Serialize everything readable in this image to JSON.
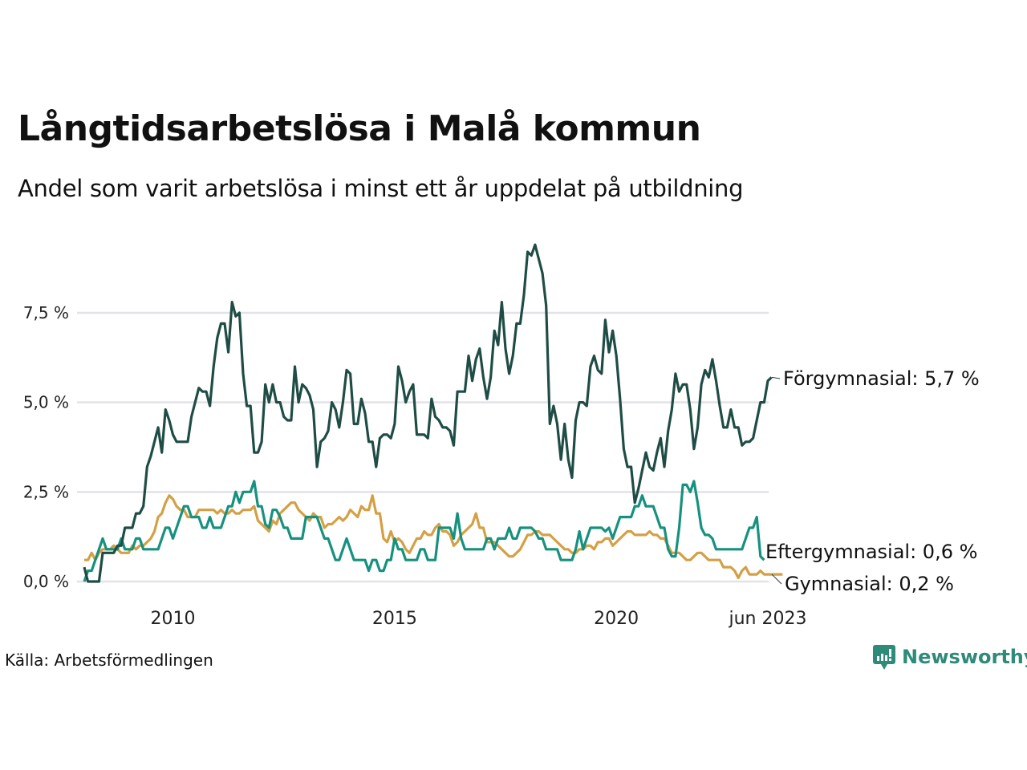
{
  "header": {
    "title": "Långtidsarbetslösa i Malå kommun",
    "subtitle": "Andel som varit arbetslösa i minst ett år uppdelat på utbildning"
  },
  "footer": {
    "source": "Källa: Arbetsförmedlingen",
    "brand": "Newsworthy",
    "brand_icon": "bar-chart-speech-bubble-icon",
    "brand_color": "#2e8b7a"
  },
  "chart_data": {
    "type": "line",
    "title": "Långtidsarbetslösa i Malå kommun",
    "subtitle": "Andel som varit arbetslösa i minst ett år uppdelat på utbildning",
    "xlabel": "",
    "ylabel": "",
    "x_start": "2008-01",
    "x_end": "2023-06",
    "x_frequency": "monthly",
    "x_ticks": [
      {
        "date": "2010-01",
        "label": "2010"
      },
      {
        "date": "2015-01",
        "label": "2015"
      },
      {
        "date": "2020-01",
        "label": "2020"
      },
      {
        "date": "2023-06",
        "label": "jun 2023"
      }
    ],
    "ylim": [
      0,
      9.5
    ],
    "y_ticks": [
      {
        "value": 0,
        "label": "0,0 %"
      },
      {
        "value": 2.5,
        "label": "2,5 %"
      },
      {
        "value": 5,
        "label": "5,0 %"
      },
      {
        "value": 7.5,
        "label": "7,5 %"
      }
    ],
    "grid": "horizontal",
    "legend": "direct-labels-right",
    "series": [
      {
        "name": "Förgymnasial",
        "end_label": "Förgymnasial: 5,7 %",
        "color": "#1f4d45",
        "values": [
          0.4,
          0,
          0,
          0,
          0,
          0.8,
          0.8,
          0.8,
          0.8,
          1.0,
          1.0,
          1.5,
          1.5,
          1.5,
          1.9,
          1.9,
          2.1,
          3.2,
          3.5,
          3.9,
          4.3,
          3.6,
          4.8,
          4.5,
          4.1,
          3.9,
          3.9,
          3.9,
          3.9,
          4.6,
          5.0,
          5.4,
          5.3,
          5.3,
          4.9,
          6.0,
          6.8,
          7.2,
          7.2,
          6.4,
          7.8,
          7.4,
          7.5,
          5.8,
          4.9,
          4.9,
          3.6,
          3.6,
          3.9,
          5.5,
          5.0,
          5.5,
          5.0,
          5.0,
          4.6,
          4.5,
          4.5,
          6.0,
          5.0,
          5.5,
          5.4,
          5.2,
          4.8,
          3.2,
          3.9,
          4.0,
          4.2,
          5.0,
          4.8,
          4.3,
          5.0,
          5.9,
          5.8,
          4.4,
          4.4,
          5.1,
          4.7,
          3.9,
          3.9,
          3.2,
          4.0,
          4.1,
          4.1,
          4.0,
          4.4,
          6.0,
          5.6,
          5.0,
          5.3,
          5.5,
          4.1,
          4.1,
          4.1,
          4.0,
          5.1,
          4.6,
          4.5,
          4.3,
          4.3,
          4.2,
          3.8,
          5.3,
          5.3,
          5.3,
          6.3,
          5.6,
          6.2,
          6.5,
          5.7,
          5.1,
          5.7,
          7.0,
          6.6,
          7.8,
          6.5,
          5.8,
          6.3,
          7.2,
          7.2,
          8.0,
          9.2,
          9.1,
          9.4,
          9.0,
          8.6,
          7.7,
          4.4,
          4.9,
          4.4,
          3.4,
          4.4,
          3.4,
          2.9,
          4.5,
          5.0,
          5.0,
          4.9,
          6.0,
          6.3,
          5.9,
          5.8,
          7.3,
          6.4,
          7.0,
          6.3,
          5.1,
          3.7,
          3.2,
          3.2,
          2.2,
          2.6,
          3.1,
          3.6,
          3.2,
          3.1,
          3.6,
          4.0,
          3.2,
          4.2,
          4.8,
          5.8,
          5.3,
          5.5,
          5.5,
          4.8,
          3.7,
          4.3,
          5.5,
          5.9,
          5.7,
          6.2,
          5.6,
          4.9,
          4.3,
          4.3,
          4.8,
          4.3,
          4.3,
          3.8,
          3.9,
          3.9,
          4.0,
          4.5,
          5.0,
          5.0,
          5.6,
          5.7
        ]
      },
      {
        "name": "Eftergymnasial",
        "end_label": "Eftergymnasial: 0,6 %",
        "color": "#17917f",
        "values": [
          0,
          0.3,
          0.3,
          0.6,
          0.9,
          1.2,
          0.9,
          0.9,
          0.9,
          0.9,
          1.2,
          0.9,
          0.9,
          0.9,
          1.2,
          1.2,
          0.9,
          0.9,
          0.9,
          0.9,
          0.9,
          1.2,
          1.5,
          1.5,
          1.2,
          1.5,
          1.8,
          2.1,
          2.1,
          1.8,
          1.8,
          1.8,
          1.5,
          1.5,
          1.8,
          1.5,
          1.5,
          1.5,
          1.8,
          2.1,
          2.1,
          2.5,
          2.2,
          2.5,
          2.5,
          2.5,
          2.8,
          2.1,
          2.1,
          1.6,
          1.5,
          2.0,
          2.0,
          1.8,
          1.5,
          1.5,
          1.2,
          1.2,
          1.2,
          1.2,
          1.8,
          1.8,
          1.8,
          1.8,
          1.5,
          1.2,
          1.2,
          0.9,
          0.6,
          0.6,
          0.9,
          1.2,
          0.9,
          0.6,
          0.6,
          0.6,
          0.6,
          0.3,
          0.6,
          0.6,
          0.3,
          0.3,
          0.6,
          0.6,
          1.2,
          0.9,
          0.9,
          0.6,
          0.6,
          0.6,
          0.6,
          0.9,
          0.9,
          0.6,
          0.6,
          0.6,
          1.5,
          1.5,
          1.5,
          1.5,
          1.2,
          1.9,
          1.2,
          0.9,
          0.9,
          0.9,
          0.9,
          0.9,
          0.9,
          1.2,
          1.2,
          0.9,
          1.2,
          1.2,
          1.2,
          1.5,
          1.2,
          1.2,
          1.5,
          1.5,
          1.5,
          1.5,
          1.4,
          1.2,
          1.2,
          0.9,
          0.9,
          0.9,
          0.9,
          0.6,
          0.6,
          0.6,
          0.6,
          0.9,
          1.4,
          0.9,
          1.2,
          1.5,
          1.5,
          1.5,
          1.5,
          1.4,
          1.5,
          1.2,
          1.5,
          1.8,
          1.8,
          1.8,
          1.8,
          2.1,
          2.1,
          2.4,
          2.1,
          2.1,
          2.1,
          1.8,
          1.5,
          1.5,
          0.9,
          0.7,
          0.7,
          1.5,
          2.7,
          2.7,
          2.5,
          2.8,
          2.2,
          1.5,
          1.3,
          1.3,
          1.2,
          0.9,
          0.9,
          0.9,
          0.9,
          0.9,
          0.9,
          0.9,
          0.9,
          1.2,
          1.5,
          1.5,
          1.8,
          0.7,
          0.6
        ]
      },
      {
        "name": "Gymnasial",
        "end_label": "Gymnasial: 0,2 %",
        "color": "#d4a045",
        "values": [
          0.6,
          0.6,
          0.8,
          0.6,
          0.8,
          0.9,
          0.9,
          0.9,
          1.0,
          0.9,
          0.8,
          0.8,
          0.8,
          1.0,
          0.9,
          1.0,
          1.0,
          1.1,
          1.2,
          1.4,
          1.8,
          1.9,
          2.2,
          2.4,
          2.3,
          2.1,
          2.0,
          2.0,
          1.8,
          1.8,
          1.8,
          2.0,
          2.0,
          2.0,
          2.0,
          2.0,
          1.9,
          2.0,
          1.9,
          1.9,
          2.0,
          1.9,
          1.9,
          2.0,
          2.0,
          2.0,
          2.1,
          1.7,
          1.6,
          1.5,
          1.4,
          1.7,
          1.6,
          1.9,
          2.0,
          2.1,
          2.2,
          2.2,
          2.0,
          1.9,
          1.8,
          1.7,
          1.9,
          1.8,
          1.8,
          1.5,
          1.6,
          1.6,
          1.7,
          1.8,
          1.7,
          1.8,
          2.0,
          1.9,
          1.8,
          2.1,
          2.0,
          2.0,
          2.4,
          1.9,
          1.9,
          1.2,
          1.1,
          1.4,
          1.1,
          1.2,
          1.1,
          0.9,
          0.8,
          1.0,
          1.2,
          1.2,
          1.4,
          1.3,
          1.3,
          1.5,
          1.6,
          1.4,
          1.4,
          1.3,
          1.0,
          1.1,
          1.3,
          1.4,
          1.5,
          1.6,
          1.9,
          1.5,
          1.5,
          1.1,
          1.1,
          1.1,
          1.0,
          0.9,
          0.8,
          0.7,
          0.7,
          0.8,
          0.9,
          1.1,
          1.3,
          1.3,
          1.4,
          1.4,
          1.3,
          1.3,
          1.3,
          1.2,
          1.1,
          1.0,
          0.9,
          0.9,
          0.8,
          0.8,
          0.9,
          0.9,
          1.0,
          1.0,
          0.9,
          1.1,
          1.1,
          1.2,
          1.2,
          1.0,
          1.1,
          1.2,
          1.3,
          1.4,
          1.4,
          1.3,
          1.3,
          1.3,
          1.3,
          1.4,
          1.3,
          1.3,
          1.2,
          1.2,
          1.0,
          0.8,
          0.8,
          0.8,
          0.7,
          0.6,
          0.6,
          0.7,
          0.8,
          0.8,
          0.7,
          0.6,
          0.6,
          0.6,
          0.6,
          0.4,
          0.4,
          0.4,
          0.3,
          0.1,
          0.3,
          0.4,
          0.2,
          0.2,
          0.2,
          0.3,
          0.2,
          0.2,
          0.2,
          0.2,
          0.2,
          0.2
        ]
      }
    ]
  }
}
